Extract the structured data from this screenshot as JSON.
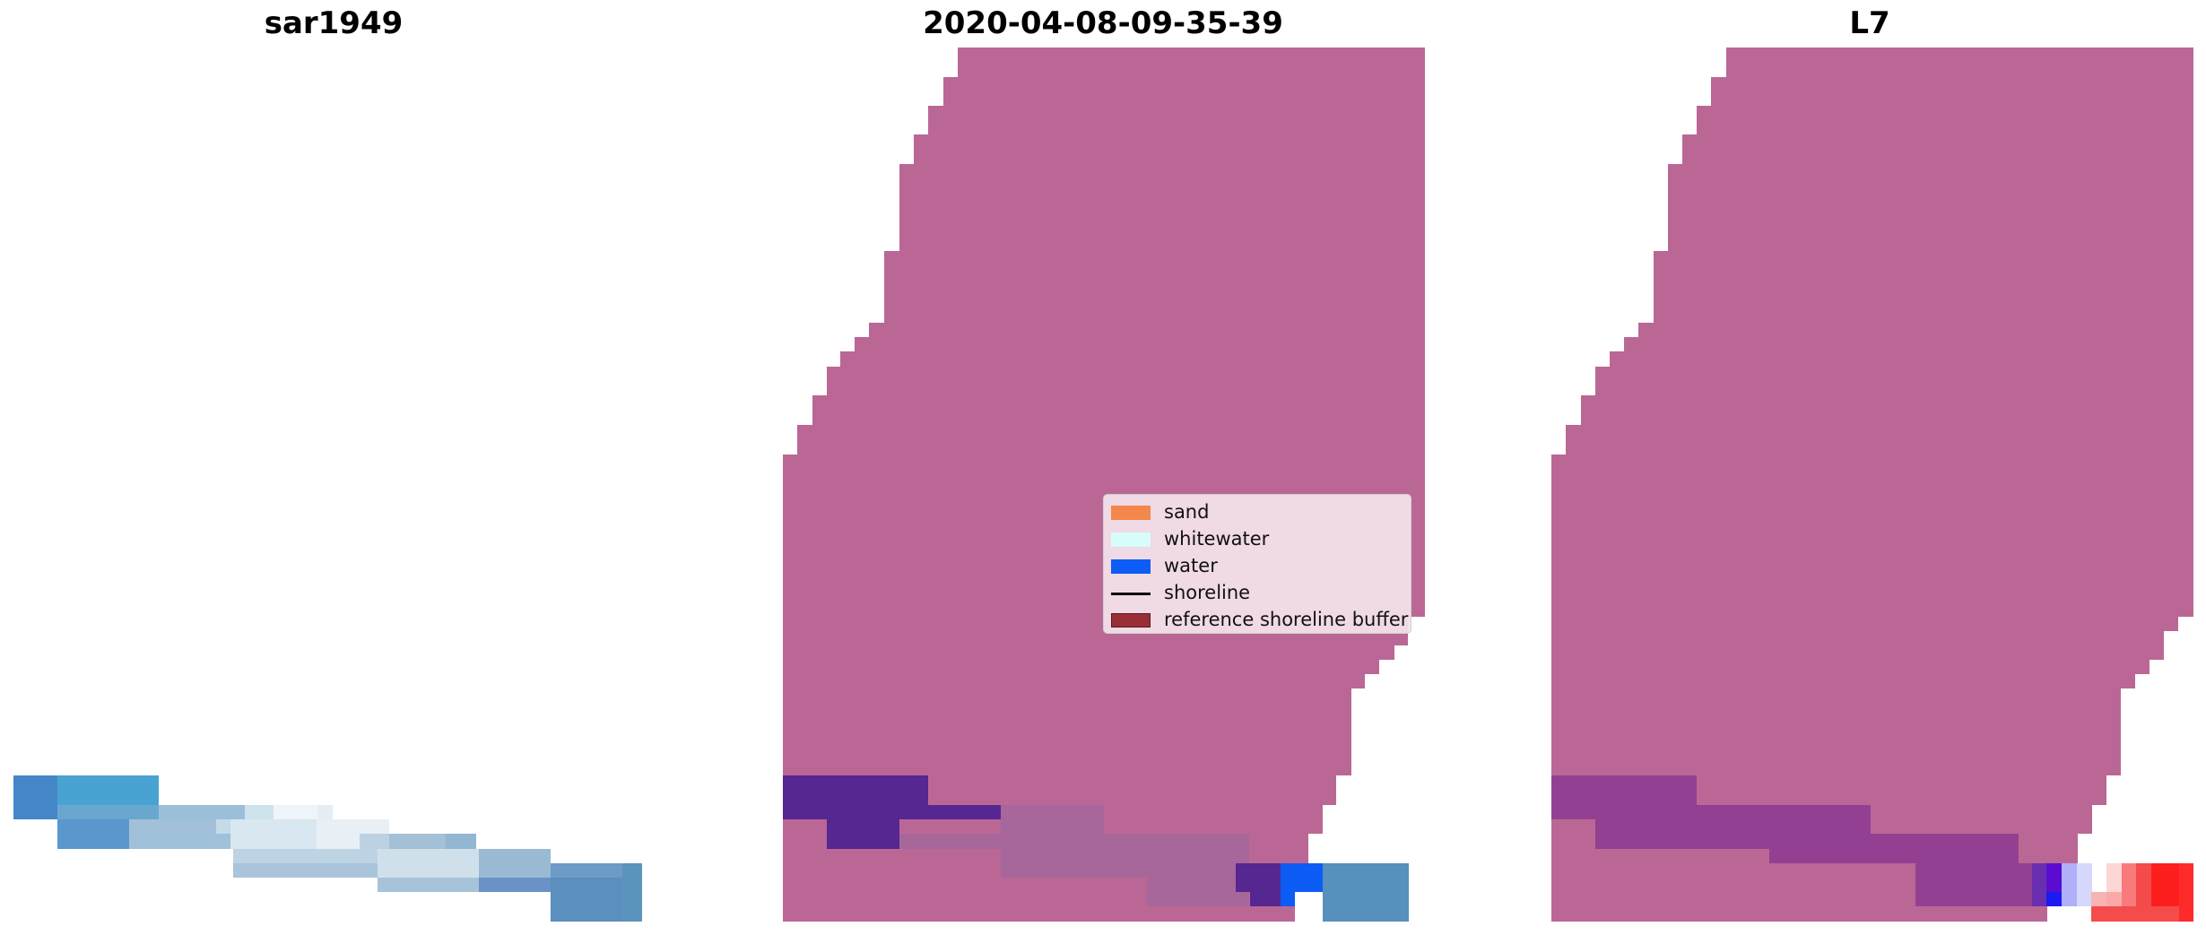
{
  "panels": [
    {
      "title": "sar1949"
    },
    {
      "title": "2020-04-08-09-35-39"
    },
    {
      "title": "L7"
    }
  ],
  "legend": {
    "items": [
      {
        "label": "sand",
        "color": "#f4874b",
        "kind": "patch"
      },
      {
        "label": "whitewater",
        "color": "#d7fdfa",
        "kind": "patch"
      },
      {
        "label": "water",
        "color": "#0d5cf5",
        "kind": "patch"
      },
      {
        "label": "shoreline",
        "color": "#000000",
        "kind": "line"
      },
      {
        "label": "reference shoreline buffer",
        "color": "#9a2e37",
        "kind": "patch"
      }
    ]
  },
  "colors": {
    "buffer": "#bb6796",
    "buffer_dark": "#562691",
    "buffer_mid": "#a7679b",
    "l7_purple": "#934093",
    "water_blue": "#0d5cf5",
    "sar_blue": "#4a89c8",
    "rgb_blue": "#5690bd"
  }
}
